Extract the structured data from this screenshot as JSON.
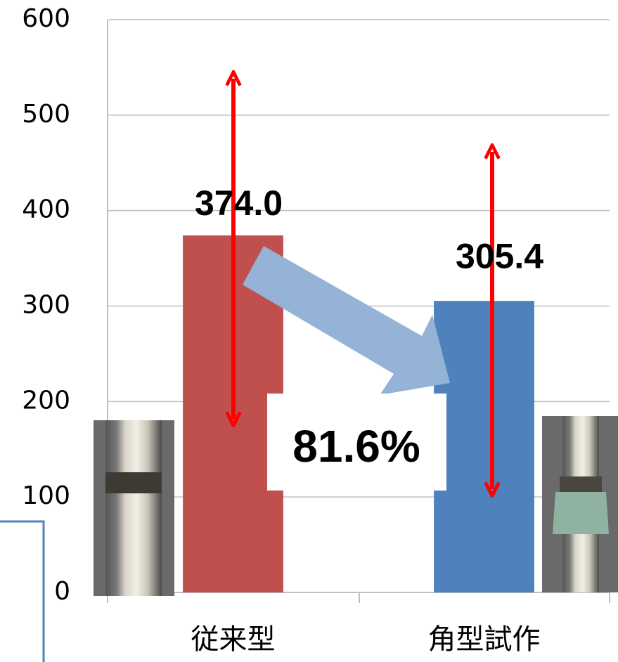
{
  "chart_data": {
    "type": "bar",
    "categories": [
      "従来型",
      "角型試作"
    ],
    "values": [
      374.0,
      305.4
    ],
    "value_labels": [
      "374.0",
      "305.4"
    ],
    "colors": [
      "#c0504d",
      "#4f81bd"
    ],
    "ylim": [
      0,
      600
    ],
    "yticks": [
      0,
      100,
      200,
      300,
      400,
      500,
      600
    ],
    "grid": true,
    "annotation": "81.6%"
  }
}
